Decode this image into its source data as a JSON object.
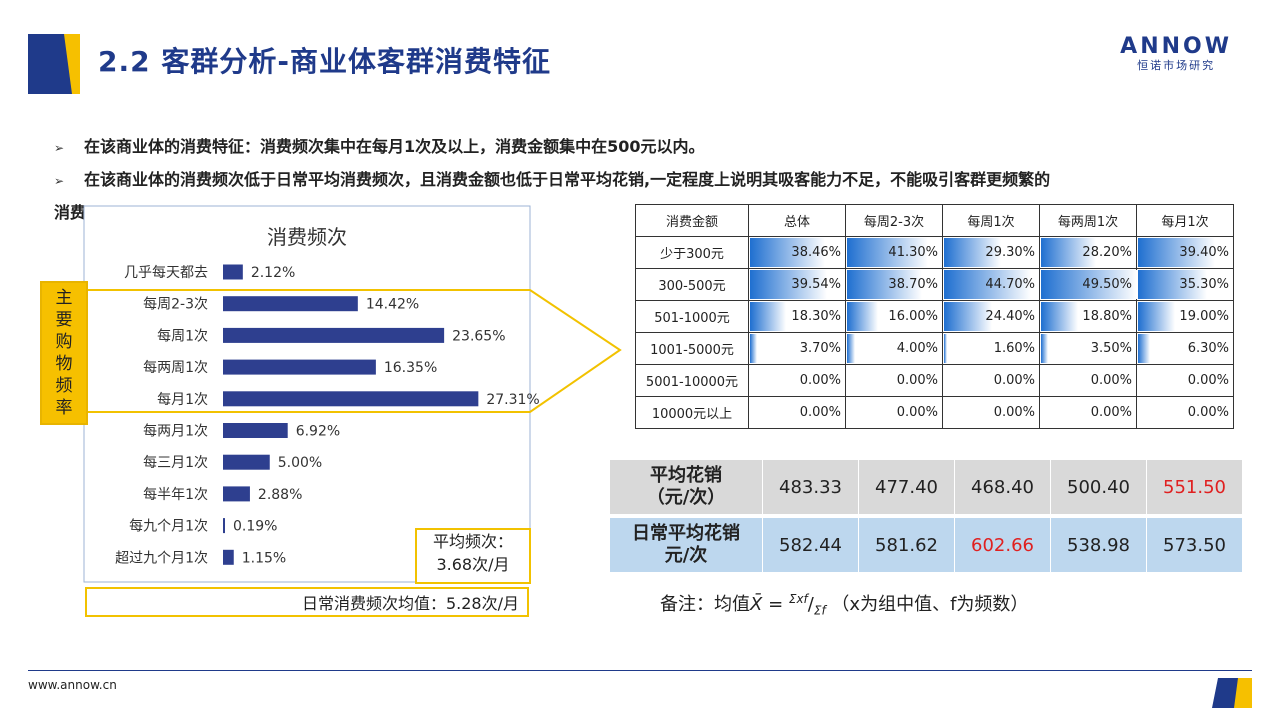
{
  "header": {
    "title": "2.2 客群分析-商业体客群消费特征",
    "logo_word": "ANNOW",
    "logo_sub": "恒诺市场研究"
  },
  "bullets": [
    "在该商业体的消费特征：消费频次集中在每月1次及以上，消费金额集中在500元以内。",
    "在该商业体的消费频次低于日常平均消费频次，且消费金额也低于日常平均花销,一定程度上说明其吸客能力不足，不能吸引客群更频繁的",
    "消费。"
  ],
  "colors": {
    "bar": "#2e3f8f",
    "accent": "#f2c200",
    "brand": "#1f3a8a",
    "highlight": "#e02020"
  },
  "chart_data": {
    "type": "bar",
    "orientation": "horizontal",
    "title": "消费频次",
    "categories": [
      "几乎每天都去",
      "每周2-3次",
      "每周1次",
      "每两周1次",
      "每月1次",
      "每两月1次",
      "每三月1次",
      "每半年1次",
      "每九个月1次",
      "超过九个月1次"
    ],
    "values": [
      2.12,
      14.42,
      23.65,
      16.35,
      27.31,
      6.92,
      5.0,
      2.88,
      0.19,
      1.15
    ],
    "value_labels": [
      "2.12%",
      "14.42%",
      "23.65%",
      "16.35%",
      "27.31%",
      "6.92%",
      "5.00%",
      "2.88%",
      "0.19%",
      "1.15%"
    ],
    "unit": "%"
  },
  "main_freq_label": [
    "主",
    "要",
    "购",
    "物",
    "频",
    "率"
  ],
  "avg_freq": {
    "line1": "平均频次：",
    "line2": "3.68次/月"
  },
  "daily_avg": "日常消费频次均值：5.28次/月",
  "amount_table": {
    "columns": [
      "消费金额",
      "总体",
      "每周2-3次",
      "每周1次",
      "每两周1次",
      "每月1次"
    ],
    "rows": [
      {
        "label": "少于300元",
        "values": [
          38.46,
          41.3,
          29.3,
          28.2,
          39.4
        ],
        "text": [
          "38.46%",
          "41.30%",
          "29.30%",
          "28.20%",
          "39.40%"
        ]
      },
      {
        "label": "300-500元",
        "values": [
          39.54,
          38.7,
          44.7,
          49.5,
          35.3
        ],
        "text": [
          "39.54%",
          "38.70%",
          "44.70%",
          "49.50%",
          "35.30%"
        ]
      },
      {
        "label": "501-1000元",
        "values": [
          18.3,
          16.0,
          24.4,
          18.8,
          19.0
        ],
        "text": [
          "18.30%",
          "16.00%",
          "24.40%",
          "18.80%",
          "19.00%"
        ]
      },
      {
        "label": "1001-5000元",
        "values": [
          3.7,
          4.0,
          1.6,
          3.5,
          6.3
        ],
        "text": [
          "3.70%",
          "4.00%",
          "1.60%",
          "3.50%",
          "6.30%"
        ]
      },
      {
        "label": "5001-10000元",
        "values": [
          0,
          0,
          0,
          0,
          0
        ],
        "text": [
          "0.00%",
          "0.00%",
          "0.00%",
          "0.00%",
          "0.00%"
        ]
      },
      {
        "label": "10000元以上",
        "values": [
          0,
          0,
          0,
          0,
          0
        ],
        "text": [
          "0.00%",
          "0.00%",
          "0.00%",
          "0.00%",
          "0.00%"
        ]
      }
    ]
  },
  "avg_table": {
    "row1": {
      "label_l1": "平均花销",
      "label_l2": "（元/次）",
      "values": [
        "483.33",
        "477.40",
        "468.40",
        "500.40",
        "551.50"
      ]
    },
    "row2": {
      "label_l1": "日常平均花销",
      "label_l2": "元/次",
      "values": [
        "582.44",
        "581.62",
        "602.66",
        "538.98",
        "573.50"
      ]
    }
  },
  "note": {
    "prefix": "备注：均值",
    "xbar": "X̄",
    "eq": " = ",
    "num": "Σxf",
    "den": "Σf",
    "suffix": "（x为组中值、f为频数）"
  },
  "footer": {
    "url": "www.annow.cn"
  }
}
